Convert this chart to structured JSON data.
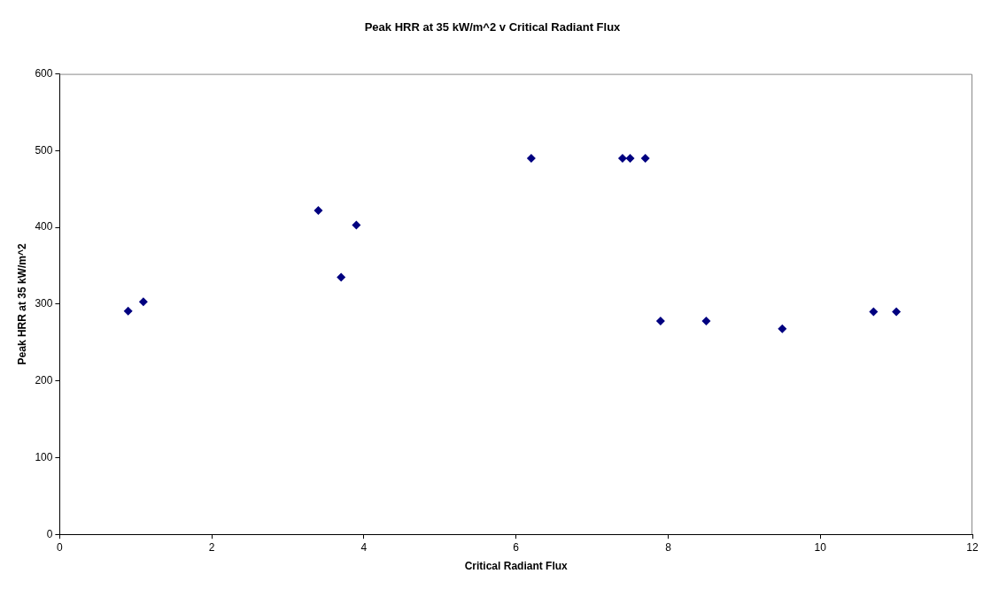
{
  "chart_data": {
    "type": "scatter",
    "title": "Peak HRR at 35 kW/m^2 v Critical Radiant Flux",
    "xlabel": "Critical Radiant Flux",
    "ylabel": "Peak HRR at 35 kW/m^2",
    "x": [
      0.9,
      1.1,
      3.4,
      3.7,
      3.9,
      6.2,
      7.4,
      7.5,
      7.7,
      7.9,
      8.5,
      9.5,
      10.7,
      11.0
    ],
    "series": [
      {
        "color": "#000080",
        "values": [
          291,
          303,
          422,
          335,
          403,
          490,
          490,
          490,
          490,
          278,
          278,
          268,
          290,
          290
        ]
      }
    ],
    "xlim": [
      0,
      12
    ],
    "xticks": [
      0,
      2,
      4,
      6,
      8,
      10,
      12
    ],
    "ylim": [
      0,
      600
    ],
    "yticks": [
      0,
      100,
      200,
      300,
      400,
      500,
      600
    ],
    "grid": false,
    "legend": false,
    "marker": "diamond"
  }
}
